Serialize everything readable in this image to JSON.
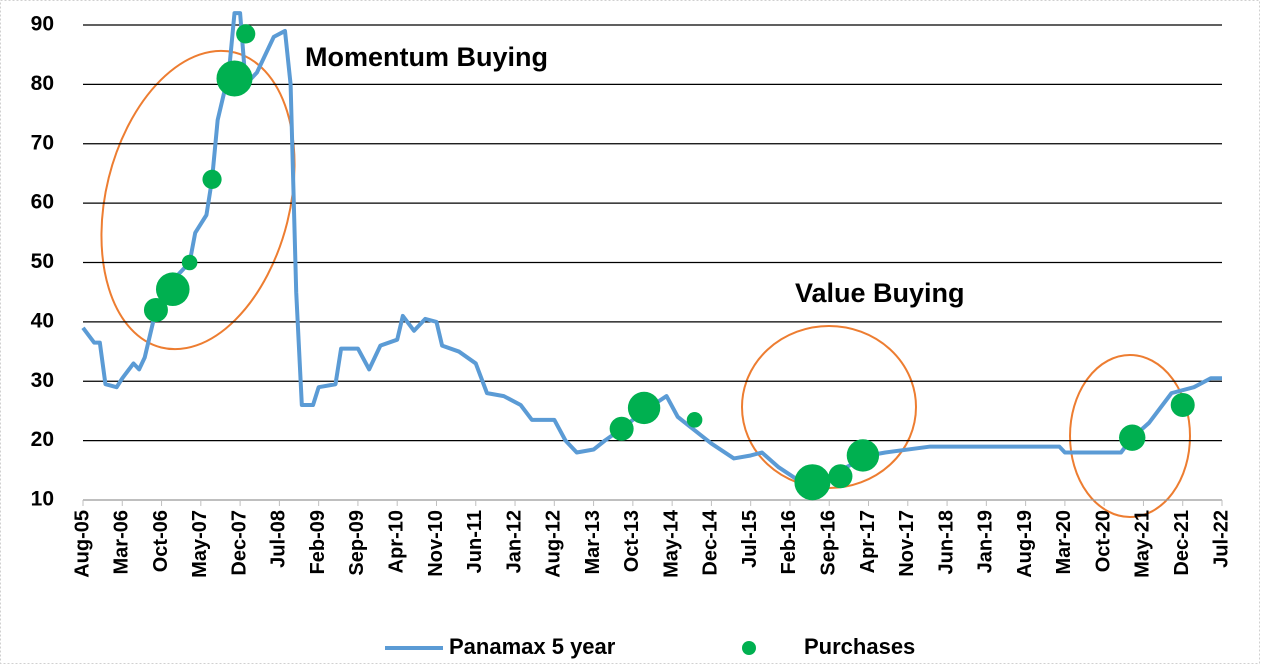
{
  "chart_data": {
    "type": "line",
    "annotations": [
      "Momentum Buying",
      "Value Buying"
    ],
    "xlim": [
      "2005-08",
      "2022-07"
    ],
    "xticks": [
      {
        "value": "2005-08",
        "label": "Aug-05"
      },
      {
        "value": "2006-03",
        "label": "Mar-06"
      },
      {
        "value": "2006-10",
        "label": "Oct-06"
      },
      {
        "value": "2007-05",
        "label": "May-07"
      },
      {
        "value": "2007-12",
        "label": "Dec-07"
      },
      {
        "value": "2008-07",
        "label": "Jul-08"
      },
      {
        "value": "2009-02",
        "label": "Feb-09"
      },
      {
        "value": "2009-09",
        "label": "Sep-09"
      },
      {
        "value": "2010-04",
        "label": "Apr-10"
      },
      {
        "value": "2010-11",
        "label": "Nov-10"
      },
      {
        "value": "2011-06",
        "label": "Jun-11"
      },
      {
        "value": "2012-01",
        "label": "Jan-12"
      },
      {
        "value": "2012-08",
        "label": "Aug-12"
      },
      {
        "value": "2013-03",
        "label": "Mar-13"
      },
      {
        "value": "2013-10",
        "label": "Oct-13"
      },
      {
        "value": "2014-05",
        "label": "May-14"
      },
      {
        "value": "2014-12",
        "label": "Dec-14"
      },
      {
        "value": "2015-07",
        "label": "Jul-15"
      },
      {
        "value": "2016-02",
        "label": "Feb-16"
      },
      {
        "value": "2016-09",
        "label": "Sep-16"
      },
      {
        "value": "2017-04",
        "label": "Apr-17"
      },
      {
        "value": "2017-11",
        "label": "Nov-17"
      },
      {
        "value": "2018-06",
        "label": "Jun-18"
      },
      {
        "value": "2019-01",
        "label": "Jan-19"
      },
      {
        "value": "2019-08",
        "label": "Aug-19"
      },
      {
        "value": "2020-03",
        "label": "Mar-20"
      },
      {
        "value": "2020-10",
        "label": "Oct-20"
      },
      {
        "value": "2021-05",
        "label": "May-21"
      },
      {
        "value": "2021-12",
        "label": "Dec-21"
      },
      {
        "value": "2022-07",
        "label": "Jul-22"
      }
    ],
    "ylim": [
      10,
      92
    ],
    "yticks": [
      10,
      20,
      30,
      40,
      50,
      60,
      70,
      80,
      90
    ],
    "grid": true,
    "legend": "bottom",
    "series": [
      {
        "name": "Panamax 5 year",
        "type": "line",
        "color": "#5b9bd5",
        "x": [
          "2005-08",
          "2005-10",
          "2005-11",
          "2005-12",
          "2006-02",
          "2006-03",
          "2006-05",
          "2006-06",
          "2006-07",
          "2006-09",
          "2006-11",
          "2007-01",
          "2007-03",
          "2007-04",
          "2007-06",
          "2007-07",
          "2007-08",
          "2007-10",
          "2007-11",
          "2007-12",
          "2008-01",
          "2008-03",
          "2008-05",
          "2008-06",
          "2008-08",
          "2008-09",
          "2008-10",
          "2008-11",
          "2009-01",
          "2009-02",
          "2009-05",
          "2009-06",
          "2009-09",
          "2009-11",
          "2010-01",
          "2010-04",
          "2010-05",
          "2010-07",
          "2010-09",
          "2010-11",
          "2010-12",
          "2011-03",
          "2011-06",
          "2011-08",
          "2011-11",
          "2012-02",
          "2012-04",
          "2012-08",
          "2012-10",
          "2012-12",
          "2013-03",
          "2013-05",
          "2013-08",
          "2013-12",
          "2014-04",
          "2014-06",
          "2014-10",
          "2014-12",
          "2015-04",
          "2015-07",
          "2015-09",
          "2015-12",
          "2016-04",
          "2016-09",
          "2017-01",
          "2017-04",
          "2017-07",
          "2018-03",
          "2020-02",
          "2020-03",
          "2021-01",
          "2021-03",
          "2021-06",
          "2021-10",
          "2022-02",
          "2022-05",
          "2022-07"
        ],
        "values": [
          39,
          36.5,
          36.5,
          29.5,
          29,
          30.5,
          33,
          32,
          34,
          42,
          44,
          48,
          50,
          55,
          58,
          64,
          74,
          82,
          92,
          92,
          80,
          82,
          86,
          88,
          89,
          80,
          45,
          26,
          26,
          29,
          29.5,
          35.5,
          35.5,
          32,
          36,
          37,
          41,
          38.5,
          40.5,
          40,
          36,
          35,
          33,
          28,
          27.5,
          26,
          23.5,
          23.5,
          20,
          18,
          18.5,
          20,
          22,
          25,
          27.5,
          24,
          21,
          19.5,
          17,
          17.5,
          18,
          15.5,
          13,
          14,
          16,
          17.5,
          18,
          19,
          19,
          18,
          18,
          20.5,
          23,
          28,
          29,
          30.5,
          30.5
        ]
      },
      {
        "name": "Purchases",
        "type": "scatter",
        "color": "#00b050",
        "x": [
          "2006-09",
          "2006-12",
          "2007-03",
          "2007-07",
          "2007-11",
          "2008-01",
          "2013-08",
          "2013-12",
          "2014-09",
          "2016-06",
          "2016-11",
          "2017-03",
          "2021-03",
          "2021-12"
        ],
        "values": [
          42,
          45.5,
          50,
          64,
          81,
          88.5,
          22,
          25.5,
          23.5,
          13,
          14,
          17.5,
          20.5,
          26
        ],
        "sizes": [
          2,
          2.8,
          1.3,
          1.6,
          3,
          1.6,
          2,
          2.7,
          1.3,
          3,
          2,
          2.7,
          2.2,
          2
        ]
      }
    ]
  }
}
